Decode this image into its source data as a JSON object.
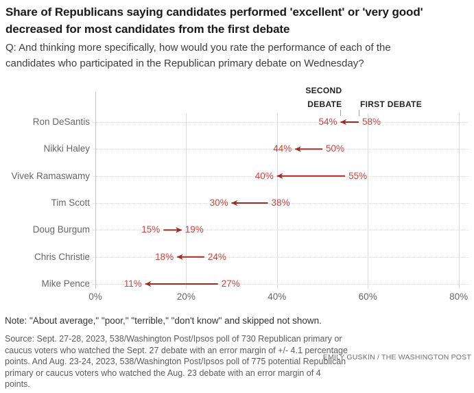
{
  "header": {
    "title": "Share of Republicans saying candidates performed 'excellent' or 'very good' decreased for most candidates from the first debate",
    "subtitle": "Q: And thinking more specifically, how would you rate the performance of each of the candidates who participated in the Republican primary debate on Wednesday?"
  },
  "chart_data": {
    "type": "scatter",
    "variant": "arrow-dumbbell",
    "title": "",
    "categories": [
      "Ron DeSantis",
      "Nikki Haley",
      "Vivek Ramaswamy",
      "Tim Scott",
      "Doug Burgum",
      "Chris Christie",
      "Mike Pence"
    ],
    "series": [
      {
        "name": "SECOND DEBATE",
        "values": [
          54,
          44,
          40,
          30,
          19,
          18,
          11
        ]
      },
      {
        "name": "FIRST DEBATE",
        "values": [
          58,
          50,
          55,
          38,
          15,
          24,
          27
        ]
      }
    ],
    "arrow_direction": "first_to_second",
    "value_suffix": "%",
    "xlim": [
      0,
      80
    ],
    "x_ticks": [
      0,
      20,
      40,
      60,
      80
    ],
    "x_tick_labels": [
      "0%",
      "20%",
      "40%",
      "60%",
      "80%"
    ],
    "grid": "vertical-solid-lines-plus-dotted-row-leaders",
    "legend_position": "top-inside-above-first-row",
    "colors": {
      "value_label": "#c8453d",
      "arrow": "#a02a20",
      "category_label": "#666666",
      "axis_label": "#666666",
      "gridline": "#d9d9d9",
      "row_dotted_line": "#dcdcdc",
      "series_header_text": "#222222"
    }
  },
  "footer": {
    "note": "Note: \"About average,\" \"poor,\" \"terrible,\" \"don't know\" and skipped not shown.",
    "source": "Source: Sept. 27-28, 2023, 538/Washington Post/Ipsos poll of 730 Republican primary or caucus voters who watched the Sept. 27 debate with an error margin of +/- 4.1 percentage points. And Aug. 23-24, 2023, 538/Washington Post/Ipsos poll of 775 potential Republican primary or caucus voters who watched the Aug. 23 debate with an error margin of 4 points.",
    "credit": "EMILY GUSKIN / THE WASHINGTON POST"
  }
}
